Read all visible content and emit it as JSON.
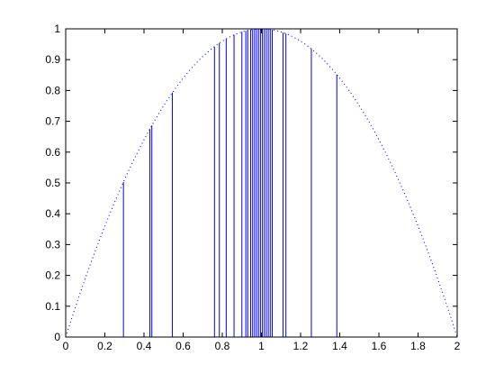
{
  "chart_data": {
    "type": "line",
    "title": "",
    "xlabel": "",
    "ylabel": "",
    "xlim": [
      0,
      2
    ],
    "ylim": [
      0,
      1
    ],
    "xticks": [
      0,
      0.2,
      0.4,
      0.6,
      0.8,
      1,
      1.2,
      1.4,
      1.6,
      1.8,
      2
    ],
    "yticks": [
      0,
      0.1,
      0.2,
      0.3,
      0.4,
      0.5,
      0.6,
      0.7,
      0.8,
      0.9,
      1
    ],
    "xtick_labels": [
      "0",
      "0.2",
      "0.4",
      "0.6",
      "0.8",
      "1",
      "1.2",
      "1.4",
      "1.6",
      "1.8",
      "2"
    ],
    "ytick_labels": [
      "0",
      "0.1",
      "0.2",
      "0.3",
      "0.4",
      "0.5",
      "0.6",
      "0.7",
      "0.8",
      "0.9",
      "1"
    ],
    "grid": false,
    "legend": "none",
    "series": [
      {
        "style": "dotted",
        "color": "#0000ff",
        "function": "y = 1 - (x - 1)^2",
        "x_range": [
          0,
          2
        ]
      },
      {
        "style": "stem",
        "color": "#0000ff",
        "x": [
          0.295,
          0.43,
          0.44,
          0.545,
          0.76,
          0.785,
          0.82,
          0.86,
          0.9,
          0.92,
          0.93,
          0.945,
          0.955,
          0.965,
          0.975,
          0.985,
          0.995,
          1.005,
          1.015,
          1.025,
          1.035,
          1.045,
          1.055,
          1.11,
          1.125,
          1.255,
          1.385
        ]
      }
    ]
  }
}
